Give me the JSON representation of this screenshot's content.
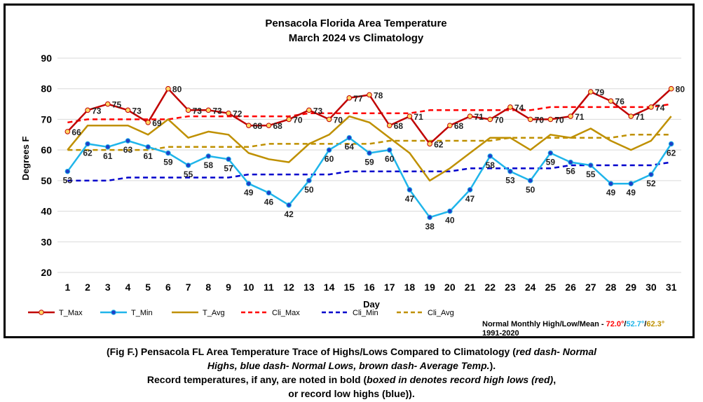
{
  "chart_data": {
    "type": "line",
    "title": "Pensacola Florida Area Temperature",
    "subtitle": "March 2024 vs Climatology",
    "xlabel": "Day",
    "ylabel": "Degrees F",
    "ylim": [
      20,
      90
    ],
    "yticks": [
      20,
      30,
      40,
      50,
      60,
      70,
      80,
      90
    ],
    "categories": [
      1,
      2,
      3,
      4,
      5,
      6,
      7,
      8,
      9,
      10,
      11,
      12,
      13,
      14,
      15,
      16,
      17,
      18,
      19,
      20,
      21,
      22,
      23,
      24,
      25,
      26,
      27,
      28,
      29,
      30,
      31
    ],
    "grid": "horizontal",
    "legend_placement": "bottom",
    "series": [
      {
        "name": "T_Max",
        "color": "#c00000",
        "style": "solid",
        "marker": "circle",
        "marker_fill": "#ffd966",
        "values": [
          66,
          73,
          75,
          73,
          69,
          80,
          73,
          73,
          72,
          68,
          68,
          70,
          73,
          70,
          77,
          78,
          68,
          71,
          62,
          68,
          71,
          70,
          74,
          70,
          70,
          71,
          79,
          76,
          71,
          74,
          80
        ]
      },
      {
        "name": "T_Min",
        "color": "#1fb5ea",
        "style": "solid",
        "marker": "circle",
        "marker_fill": "#1f3fc8",
        "values": [
          53,
          62,
          61,
          63,
          61,
          59,
          55,
          58,
          57,
          49,
          46,
          42,
          50,
          60,
          64,
          59,
          60,
          47,
          38,
          40,
          47,
          58,
          53,
          50,
          59,
          56,
          55,
          49,
          49,
          52,
          62
        ]
      },
      {
        "name": "T_Avg",
        "color": "#bf9000",
        "style": "solid",
        "marker": "none",
        "values": [
          60,
          68,
          68,
          68,
          65,
          70,
          64,
          66,
          65,
          59,
          57,
          56,
          62,
          65,
          71,
          69,
          64,
          59,
          50,
          54,
          59,
          64,
          64,
          60,
          65,
          64,
          67,
          63,
          60,
          63,
          71
        ]
      },
      {
        "name": "Cli_Max",
        "color": "#ff0000",
        "style": "dashed",
        "marker": "none",
        "values": [
          69,
          70,
          70,
          70,
          70,
          70,
          71,
          71,
          71,
          71,
          71,
          71,
          72,
          72,
          72,
          72,
          72,
          72,
          73,
          73,
          73,
          73,
          73,
          73,
          74,
          74,
          74,
          74,
          74,
          74,
          75
        ]
      },
      {
        "name": "Cli_Min",
        "color": "#0000cc",
        "style": "dashed",
        "marker": "none",
        "values": [
          50,
          50,
          50,
          51,
          51,
          51,
          51,
          51,
          51,
          52,
          52,
          52,
          52,
          52,
          53,
          53,
          53,
          53,
          53,
          53,
          54,
          54,
          54,
          54,
          54,
          55,
          55,
          55,
          55,
          55,
          56
        ]
      },
      {
        "name": "Cli_Avg",
        "color": "#bf9000",
        "style": "dashed",
        "marker": "none",
        "values": [
          60,
          60,
          60,
          60,
          60,
          61,
          61,
          61,
          61,
          61,
          62,
          62,
          62,
          62,
          62,
          62,
          63,
          63,
          63,
          63,
          63,
          63,
          64,
          64,
          64,
          64,
          64,
          64,
          65,
          65,
          65
        ]
      }
    ],
    "tmax_labels": [
      "66",
      "73",
      "75",
      "73",
      "69",
      "80",
      "73",
      "73",
      "72",
      "68",
      "68",
      "70",
      "73",
      "70",
      "77",
      "78",
      "68",
      "71",
      "62",
      "68",
      "71",
      "70",
      "74",
      "70",
      "70",
      "71",
      "79",
      "76",
      "71",
      "74",
      "80"
    ],
    "tmin_labels": [
      "53",
      "62",
      "61",
      "63",
      "61",
      "59",
      "55",
      "58",
      "57",
      "49",
      "46",
      "42",
      "50",
      "60",
      "64",
      "59",
      "60",
      "47",
      "38",
      "40",
      "47",
      "58",
      "53",
      "50",
      "59",
      "56",
      "55",
      "49",
      "49",
      "52",
      "62"
    ],
    "normals": {
      "prefix": "Normal Monthly High/Low/Mean - ",
      "high": "72.0°",
      "sep1": "/",
      "low": "52.7°",
      "sep2": "/",
      "mean": "62.3°",
      "period": "1991-2020",
      "high_color": "#ff0000",
      "low_color": "#1fb5ea",
      "mean_color": "#bf9000"
    }
  },
  "caption": {
    "line1_a": "(Fig F.) Pensacola FL Area Temperature Trace of Highs/Lows Compared to Climatology (",
    "line1_b": "red dash- Normal",
    "line2_a": "Highs, blue dash- Normal Lows, brown dash- Average Temp.",
    "line2_b": ").",
    "line3_a": "Record temperatures, if any, are noted in bold (",
    "line3_b": "boxed in denotes record high lows (red)",
    "line3_c": ",",
    "line4": "or record low highs (blue))."
  }
}
